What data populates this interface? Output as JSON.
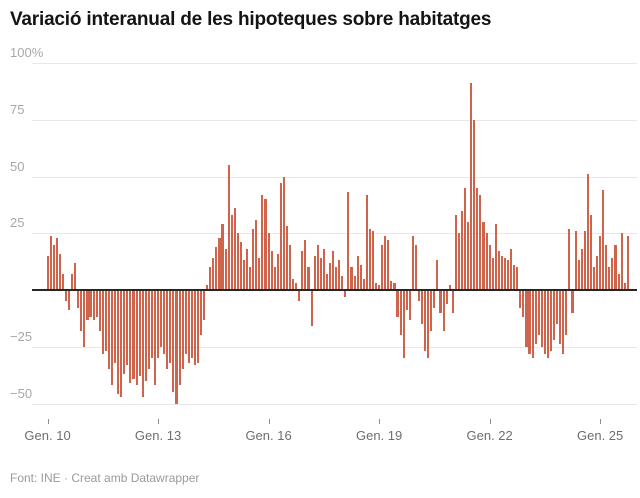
{
  "chart": {
    "title": "Variació interanual de les hipoteques sobre habitatges",
    "footer": "Font: INE · Creat amb Datawrapper"
  },
  "chart_data": {
    "type": "bar",
    "title": "Variació interanual de les hipoteques sobre habitatges",
    "unit": "%",
    "frequency": "monthly",
    "x_start_label": "Gen. 10",
    "xlabel": "",
    "ylabel": "",
    "ylim": [
      -50,
      100
    ],
    "grid": true,
    "legend": false,
    "bar_color": "#cf644d",
    "baseline_color": "#262626",
    "gridline_color": "#e8e8e8",
    "y_ticks": [
      {
        "value": 100,
        "label": "100%"
      },
      {
        "value": 75,
        "label": "75"
      },
      {
        "value": 50,
        "label": "50"
      },
      {
        "value": 25,
        "label": "25"
      },
      {
        "value": -25,
        "label": "−25"
      },
      {
        "value": -50,
        "label": "−50"
      }
    ],
    "x_ticks": [
      {
        "index": 0,
        "label": "Gen. 10"
      },
      {
        "index": 36,
        "label": "Gen. 13"
      },
      {
        "index": 72,
        "label": "Gen. 16"
      },
      {
        "index": 108,
        "label": "Gen. 19"
      },
      {
        "index": 144,
        "label": "Gen. 22"
      },
      {
        "index": 180,
        "label": "Gen. 25"
      }
    ],
    "values": [
      15,
      24,
      20,
      23,
      16,
      7,
      -5,
      -9,
      7,
      12,
      -8,
      -18,
      -25,
      -13,
      -12,
      -13,
      -12,
      -18,
      -28,
      -27,
      -35,
      -42,
      -32,
      -46,
      -47,
      -37,
      -33,
      -41,
      -39,
      -42,
      -38,
      -47,
      -40,
      -35,
      -30,
      -42,
      -30,
      -25,
      -28,
      -35,
      -32,
      -45,
      -50,
      -42,
      -35,
      -28,
      -32,
      -30,
      -33,
      -32,
      -20,
      -13,
      2,
      10,
      14,
      19,
      23,
      29,
      18,
      55,
      33,
      36,
      25,
      21,
      13,
      18,
      10,
      27,
      31,
      14,
      42,
      40,
      25,
      17,
      10,
      16,
      47,
      50,
      28,
      20,
      5,
      3,
      -5,
      17,
      22,
      10,
      -16,
      15,
      20,
      14,
      18,
      7,
      12,
      17,
      10,
      13,
      6,
      -3,
      43,
      10,
      6,
      15,
      11,
      5,
      42,
      27,
      26,
      3,
      2,
      20,
      24,
      22,
      4,
      3,
      -12,
      -20,
      -30,
      -9,
      -13,
      24,
      20,
      -5,
      -15,
      -27,
      -30,
      -18,
      -8,
      13,
      -10,
      -18,
      -6,
      2,
      -10,
      33,
      25,
      35,
      45,
      30,
      91,
      75,
      45,
      42,
      30,
      25,
      20,
      14,
      29,
      17,
      15,
      14,
      13,
      18,
      11,
      10,
      -8,
      -12,
      -25,
      -28,
      -30,
      -24,
      -20,
      -25,
      -28,
      -30,
      -27,
      -22,
      -15,
      -24,
      -28,
      -20,
      27,
      -10,
      26,
      13,
      18,
      26,
      51,
      33,
      10,
      15,
      24,
      44,
      20,
      10,
      14,
      20,
      7,
      25,
      3,
      24
    ]
  }
}
